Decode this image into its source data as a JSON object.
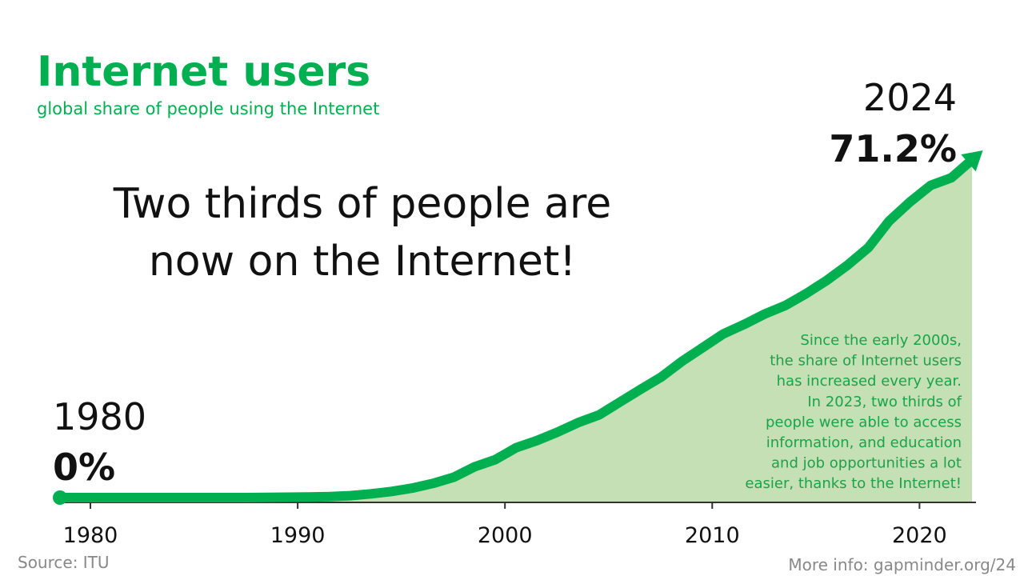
{
  "chart_data": {
    "type": "area",
    "title": "Internet users",
    "subtitle": "global share of people using the Internet",
    "headline": [
      "Two thirds of people are",
      "now on the Internet!"
    ],
    "start_label": {
      "year": "1980",
      "value": "0%"
    },
    "end_label": {
      "year": "2024",
      "value": "71.2%"
    },
    "annotation": [
      "Since the early 2000s,",
      "the share of Internet users",
      "has increased every year.",
      "In 2023, two thirds of",
      "people were able to access",
      "information, and education",
      "and job opportunities a lot",
      "easier, thanks to the Internet!"
    ],
    "source": "Source: ITU",
    "more_info": "More info: gapminder.org/24",
    "x": [
      1980,
      1981,
      1982,
      1983,
      1984,
      1985,
      1986,
      1987,
      1988,
      1989,
      1990,
      1991,
      1992,
      1993,
      1994,
      1995,
      1996,
      1997,
      1998,
      1999,
      2000,
      2001,
      2002,
      2003,
      2004,
      2005,
      2006,
      2007,
      2008,
      2009,
      2010,
      2011,
      2012,
      2013,
      2014,
      2015,
      2016,
      2017,
      2018,
      2019,
      2020,
      2021,
      2022,
      2023,
      2024
    ],
    "series": [
      {
        "name": "Internet users",
        "color": "#00b050",
        "fill": "#c5e0b4",
        "values": [
          0,
          0,
          0,
          0,
          0,
          0,
          0,
          0,
          0,
          0,
          0.05,
          0.08,
          0.13,
          0.2,
          0.4,
          0.8,
          1.3,
          2,
          3,
          4.3,
          6.5,
          8,
          10.5,
          12,
          13.8,
          15.8,
          17.4,
          20.1,
          22.8,
          25.4,
          28.7,
          31.6,
          34.5,
          36.5,
          38.7,
          40.5,
          43,
          45.8,
          49,
          52.7,
          58.3,
          62.3,
          65.8,
          67.4,
          71.2
        ]
      }
    ],
    "xlim": [
      1980,
      2024
    ],
    "xticks": [
      1980,
      1990,
      2000,
      2010,
      2020
    ],
    "ylim": [
      0,
      100
    ]
  }
}
